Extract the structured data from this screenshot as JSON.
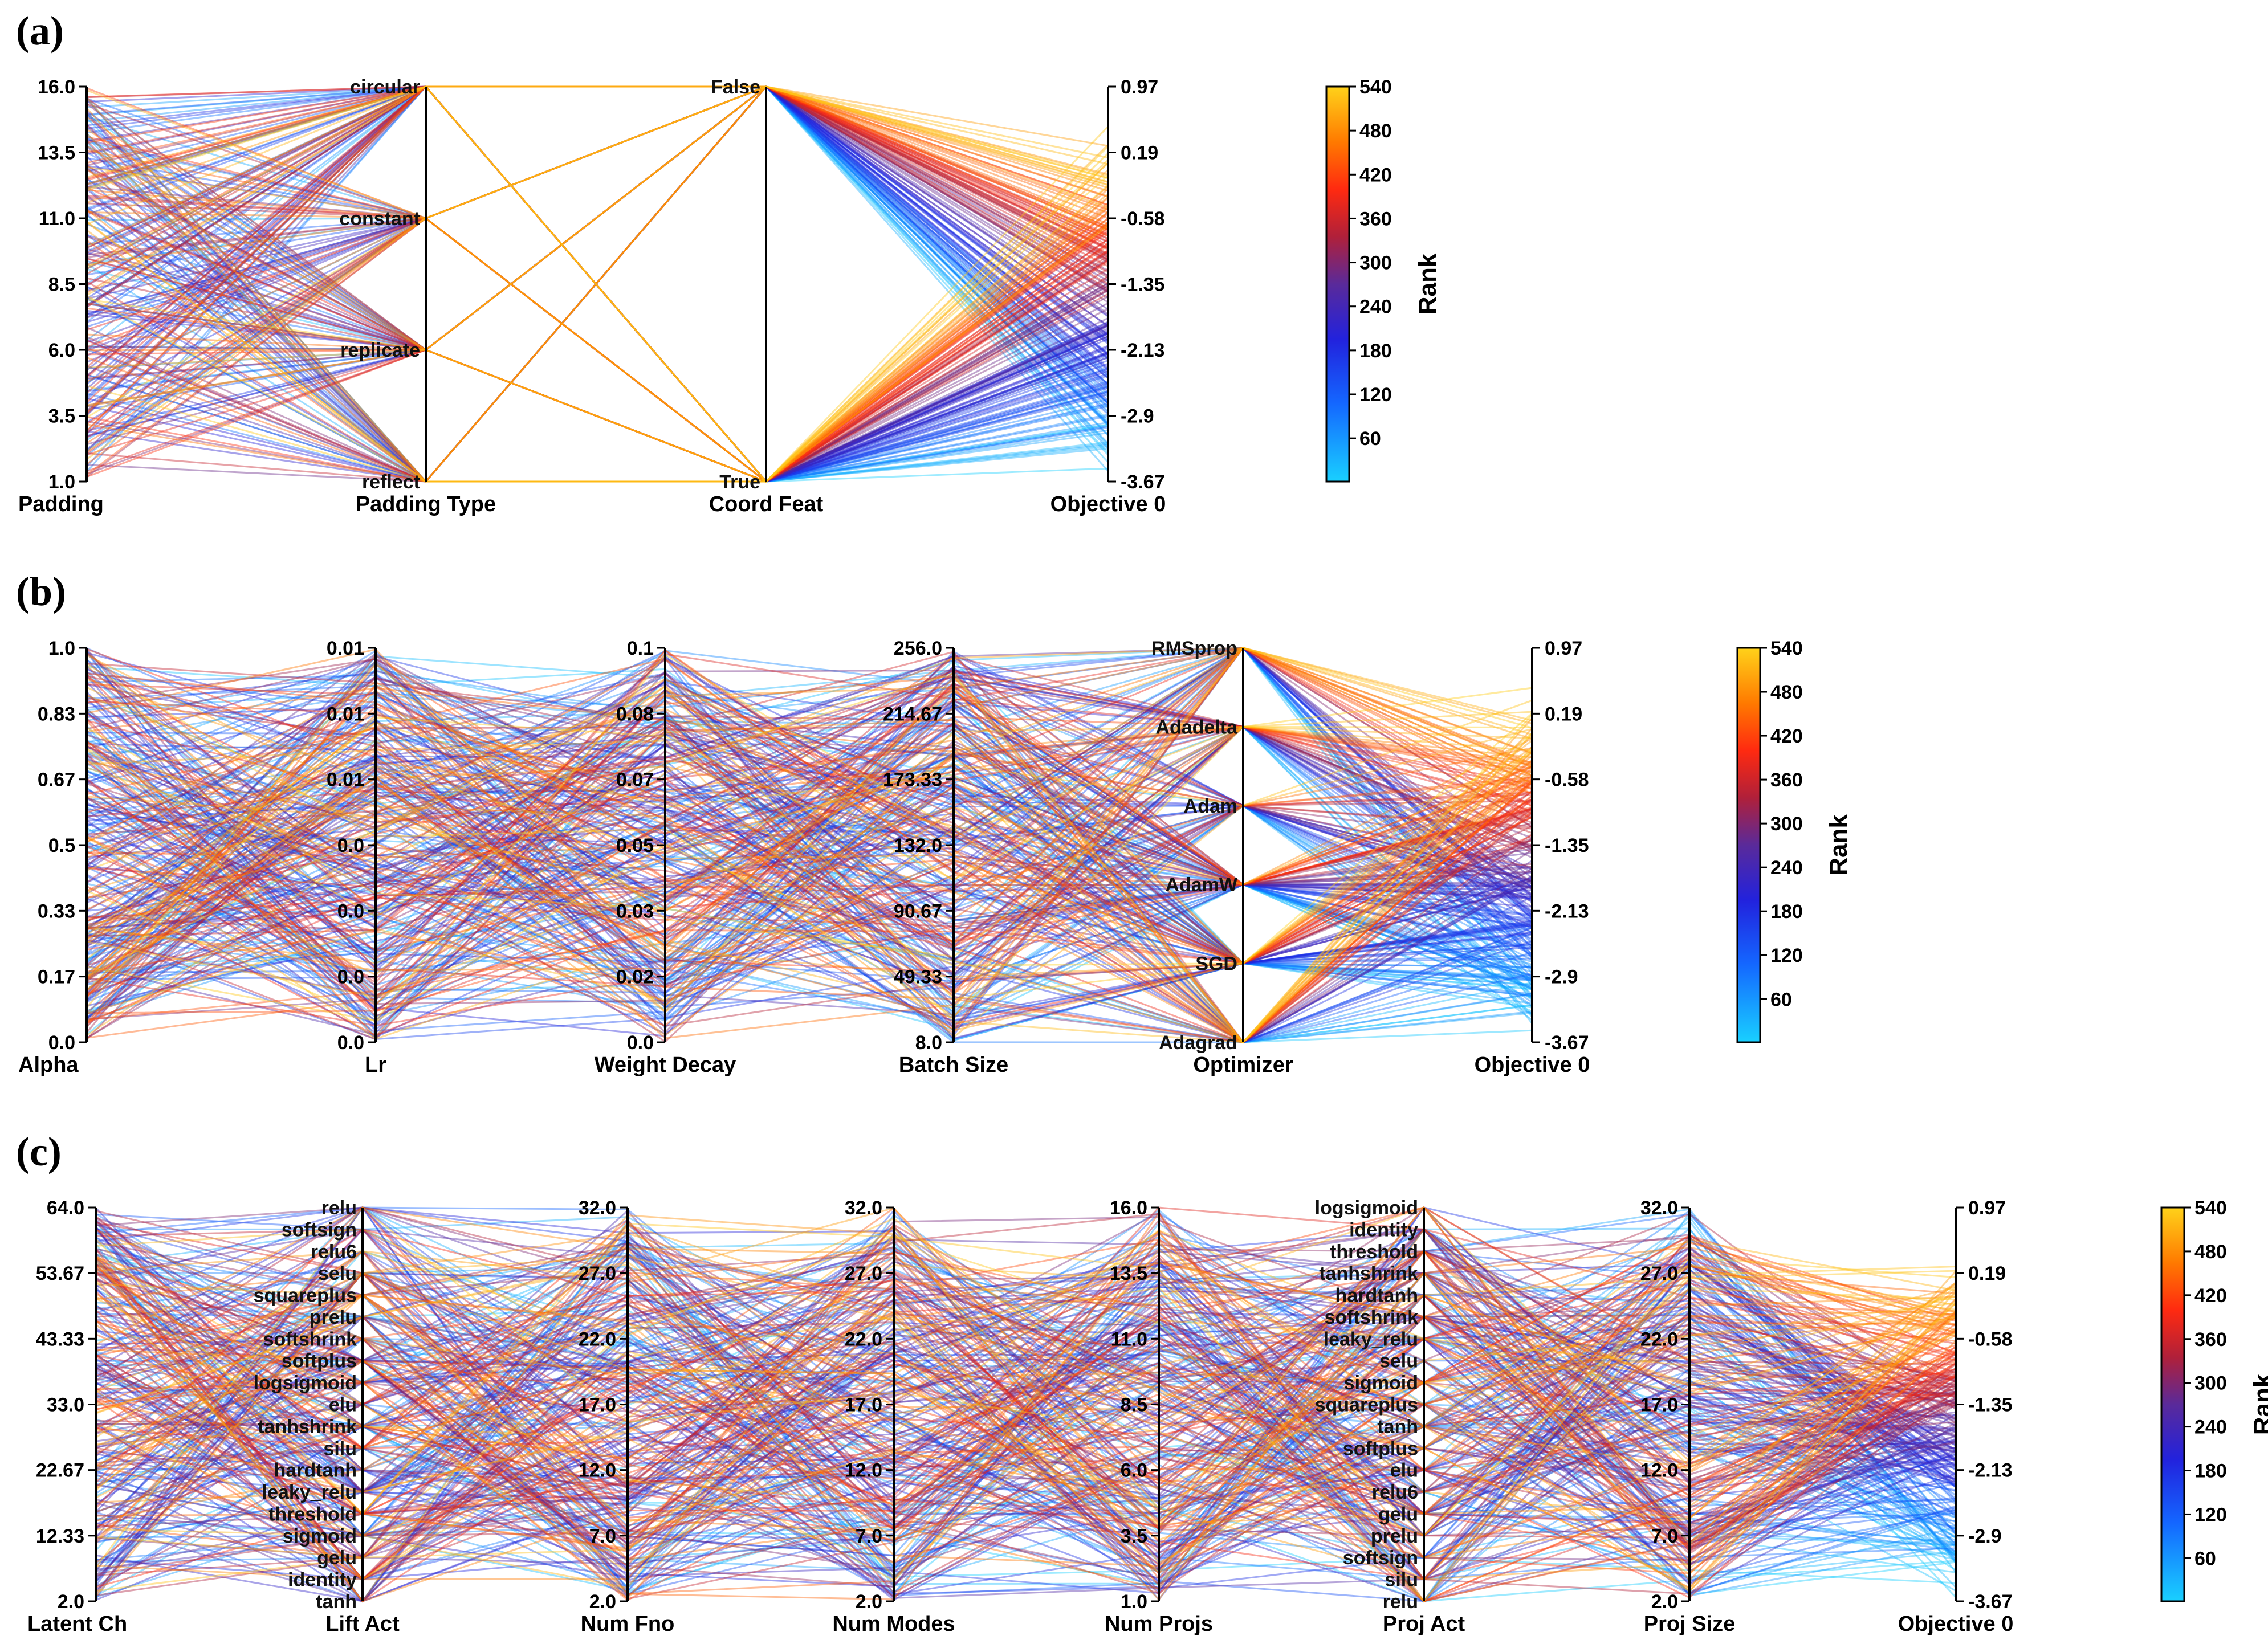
{
  "chart_data": [
    {
      "type": "parallel-coordinates",
      "panel_label": "(a)",
      "colorbar": {
        "title": "Rank",
        "ticks": [
          "540",
          "480",
          "420",
          "360",
          "300",
          "240",
          "180",
          "120",
          "60"
        ],
        "range": [
          1,
          540
        ]
      },
      "axes": [
        {
          "name": "Padding",
          "kind": "numeric",
          "ticks": [
            "16.0",
            "13.5",
            "11.0",
            "8.5",
            "6.0",
            "3.5",
            "1.0"
          ]
        },
        {
          "name": "Padding Type",
          "kind": "categorical",
          "categories": [
            "circular",
            "constant",
            "replicate",
            "reflect"
          ]
        },
        {
          "name": "Coord Feat",
          "kind": "categorical",
          "categories": [
            "False",
            "True"
          ]
        },
        {
          "name": "Objective 0",
          "kind": "numeric",
          "ticks": [
            "0.97",
            "0.19",
            "-0.58",
            "-1.35",
            "-2.13",
            "-2.9",
            "-3.67"
          ]
        }
      ]
    },
    {
      "type": "parallel-coordinates",
      "panel_label": "(b)",
      "colorbar": {
        "title": "Rank",
        "ticks": [
          "540",
          "480",
          "420",
          "360",
          "300",
          "240",
          "180",
          "120",
          "60"
        ],
        "range": [
          1,
          540
        ]
      },
      "axes": [
        {
          "name": "Alpha",
          "kind": "numeric",
          "ticks": [
            "1.0",
            "0.83",
            "0.67",
            "0.5",
            "0.33",
            "0.17",
            "0.0"
          ]
        },
        {
          "name": "Lr",
          "kind": "numeric",
          "ticks": [
            "0.01",
            "0.01",
            "0.01",
            "0.0",
            "0.0",
            "0.0",
            "0.0"
          ]
        },
        {
          "name": "Weight Decay",
          "kind": "numeric",
          "ticks": [
            "0.1",
            "0.08",
            "0.07",
            "0.05",
            "0.03",
            "0.02",
            "0.0"
          ]
        },
        {
          "name": "Batch Size",
          "kind": "numeric",
          "ticks": [
            "256.0",
            "214.67",
            "173.33",
            "132.0",
            "90.67",
            "49.33",
            "8.0"
          ]
        },
        {
          "name": "Optimizer",
          "kind": "categorical",
          "categories": [
            "RMSprop",
            "Adadelta",
            "Adam",
            "AdamW",
            "SGD",
            "Adagrad"
          ]
        },
        {
          "name": "Objective 0",
          "kind": "numeric",
          "ticks": [
            "0.97",
            "0.19",
            "-0.58",
            "-1.35",
            "-2.13",
            "-2.9",
            "-3.67"
          ]
        }
      ]
    },
    {
      "type": "parallel-coordinates",
      "panel_label": "(c)",
      "colorbar": {
        "title": "Rank",
        "ticks": [
          "540",
          "480",
          "420",
          "360",
          "300",
          "240",
          "180",
          "120",
          "60"
        ],
        "range": [
          1,
          540
        ]
      },
      "axes": [
        {
          "name": "Latent Ch",
          "kind": "numeric",
          "ticks": [
            "64.0",
            "53.67",
            "43.33",
            "33.0",
            "22.67",
            "12.33",
            "2.0"
          ]
        },
        {
          "name": "Lift Act",
          "kind": "categorical",
          "categories": [
            "relu",
            "softsign",
            "relu6",
            "selu",
            "squareplus",
            "prelu",
            "softshrink",
            "softplus",
            "logsigmoid",
            "elu",
            "tanhshrink",
            "silu",
            "hardtanh",
            "leaky_relu",
            "threshold",
            "sigmoid",
            "gelu",
            "identity",
            "tanh"
          ]
        },
        {
          "name": "Num Fno",
          "kind": "numeric",
          "ticks": [
            "32.0",
            "27.0",
            "22.0",
            "17.0",
            "12.0",
            "7.0",
            "2.0"
          ]
        },
        {
          "name": "Num Modes",
          "kind": "numeric",
          "ticks": [
            "32.0",
            "27.0",
            "22.0",
            "17.0",
            "12.0",
            "7.0",
            "2.0"
          ]
        },
        {
          "name": "Num Projs",
          "kind": "numeric",
          "ticks": [
            "16.0",
            "13.5",
            "11.0",
            "8.5",
            "6.0",
            "3.5",
            "1.0"
          ]
        },
        {
          "name": "Proj Act",
          "kind": "categorical",
          "categories": [
            "logsigmoid",
            "identity",
            "threshold",
            "tanhshrink",
            "hardtanh",
            "softshrink",
            "leaky_relu",
            "selu",
            "sigmoid",
            "squareplus",
            "tanh",
            "softplus",
            "elu",
            "relu6",
            "gelu",
            "prelu",
            "softsign",
            "silu",
            "relu"
          ]
        },
        {
          "name": "Proj Size",
          "kind": "numeric",
          "ticks": [
            "32.0",
            "27.0",
            "22.0",
            "17.0",
            "12.0",
            "7.0",
            "2.0"
          ]
        },
        {
          "name": "Objective 0",
          "kind": "numeric",
          "ticks": [
            "0.97",
            "0.19",
            "-0.58",
            "-1.35",
            "-2.13",
            "-2.9",
            "-3.67"
          ]
        }
      ]
    }
  ]
}
